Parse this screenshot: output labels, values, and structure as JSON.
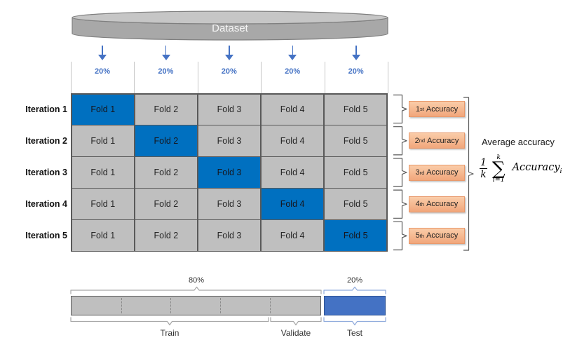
{
  "diagram": {
    "dataset_label": "Dataset",
    "split_labels": [
      "20%",
      "20%",
      "20%",
      "20%",
      "20%"
    ],
    "iteration_labels": [
      "Iteration 1",
      "Iteration 2",
      "Iteration 3",
      "Iteration 4",
      "Iteration 5"
    ],
    "fold_labels": [
      "Fold 1",
      "Fold 2",
      "Fold 3",
      "Fold 4",
      "Fold 5"
    ],
    "highlighted_fold_index_per_iteration": [
      0,
      1,
      2,
      3,
      4
    ],
    "accuracy_boxes": [
      {
        "ordinal": "1",
        "suffix": "st",
        "label": "Accuracy"
      },
      {
        "ordinal": "2",
        "suffix": "nd",
        "label": "Accuracy"
      },
      {
        "ordinal": "3",
        "suffix": "rd",
        "label": "Accuracy"
      },
      {
        "ordinal": "4",
        "suffix": "th",
        "label": "Accuracy"
      },
      {
        "ordinal": "5",
        "suffix": "th",
        "label": "Accuracy"
      }
    ],
    "average_accuracy_label": "Average accuracy",
    "formula": {
      "fraction_numerator": "1",
      "fraction_denominator": "k",
      "sum_upper_limit": "k",
      "sum_symbol": "∑",
      "sum_lower_limit": "i=1",
      "term": "Accuracy",
      "term_subscript": "i"
    },
    "bottom_bar": {
      "train_validate_percent": "80%",
      "test_percent": "20%",
      "train_label": "Train",
      "validate_label": "Validate",
      "test_label": "Test",
      "train_segments": 5
    },
    "colors": {
      "fold_cell_gray": "#BFBFBF",
      "fold_cell_highlight_blue": "#0070C0",
      "grid_border": "#595959",
      "arrow_blue": "#4472C4",
      "percent_label_blue": "#4472C4",
      "test_bar_blue": "#4472C4",
      "accuracy_box_fill_top": "#FACDA9",
      "accuracy_box_fill_bottom": "#F1A67B",
      "accuracy_box_border": "#E8996C",
      "bracket_gray": "#595959",
      "brace_gray": "#A6A6A6",
      "brace_blue": "#8FAADC",
      "cylinder_fill": "#A8A8A8",
      "cylinder_top_fill": "#C6C6C6",
      "cylinder_border": "#7F7F7F"
    }
  }
}
